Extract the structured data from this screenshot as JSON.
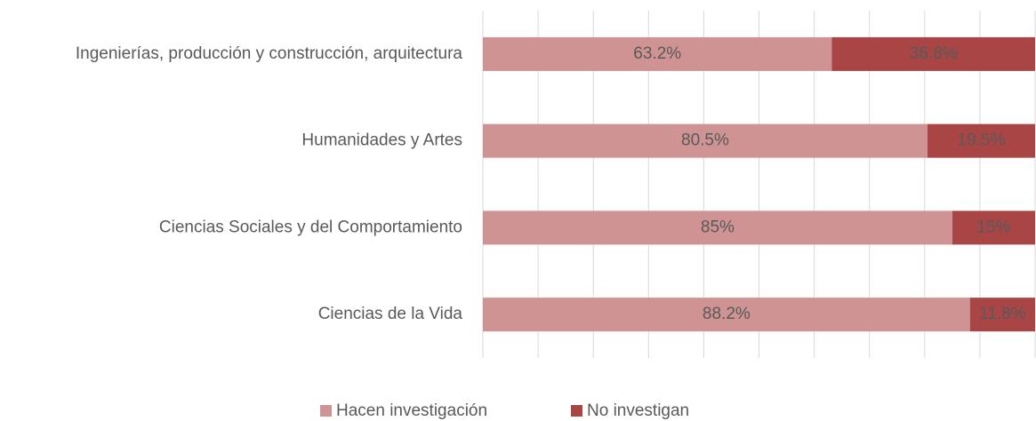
{
  "chart_data": {
    "type": "stacked-bar-horizontal",
    "categories": [
      "Ingenierías, producción y construcción, arquitectura",
      "Humanidades y Artes",
      "Ciencias Sociales y del Comportamiento",
      "Ciencias de la Vida"
    ],
    "series": [
      {
        "name": "Hacen investigación",
        "color": "#d09393",
        "values": [
          63.2,
          80.5,
          85,
          88.2
        ],
        "value_labels": [
          "63.2%",
          "80.5%",
          "85%",
          "88.2%"
        ]
      },
      {
        "name": "No investigan",
        "color": "#a94545",
        "values": [
          36.8,
          19.5,
          15,
          11.8
        ],
        "value_labels": [
          "36.8%",
          "19.5%",
          "15%",
          "11.8%"
        ]
      }
    ],
    "xlim": [
      0,
      100
    ],
    "xticks": [
      0,
      10,
      20,
      30,
      40,
      50,
      60,
      70,
      80,
      90,
      100
    ],
    "grid": true,
    "legend": "bottom"
  }
}
